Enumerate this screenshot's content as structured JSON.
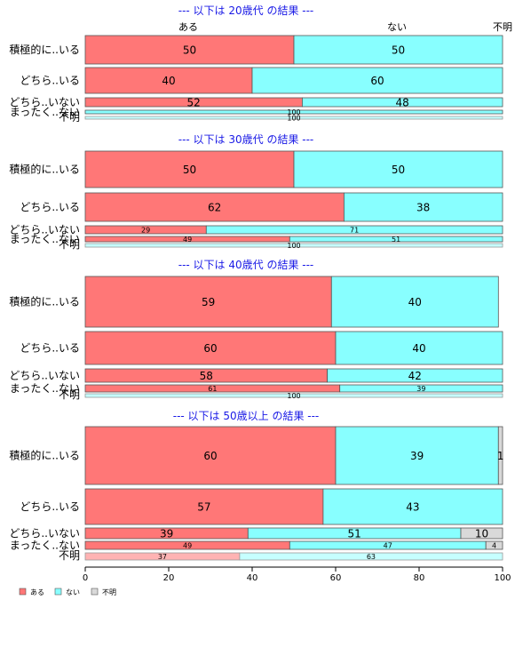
{
  "colors": {
    "aru": "#ff7777",
    "nai": "#88ffff",
    "fumei": "#d9d9d9",
    "title": "#1a1ae6",
    "border": "#555555"
  },
  "header": {
    "col_aru": "ある",
    "col_nai": "ない",
    "col_fumei": "不明"
  },
  "legend": {
    "items": [
      "ある",
      "ない",
      "不明"
    ]
  },
  "chart_data": {
    "type": "bar",
    "orientation": "horizontal",
    "stacked": true,
    "xlim": [
      0,
      100
    ],
    "xticks": [
      0,
      20,
      40,
      60,
      80,
      100
    ],
    "series_names": [
      "ある",
      "ない",
      "不明"
    ],
    "panels": [
      {
        "title": "--- 以下は 20歳代 の結果 ---",
        "rows": [
          {
            "label": "積極的に..いる",
            "values": [
              50,
              50,
              0
            ]
          },
          {
            "label": "どちら..いる",
            "values": [
              40,
              60,
              0
            ]
          },
          {
            "label": "どちら..いない",
            "values": [
              52,
              48,
              0
            ]
          },
          {
            "label": "まったく..ない",
            "values": [
              0,
              100,
              0
            ]
          },
          {
            "label": "不明",
            "values": [
              0,
              100,
              0
            ]
          }
        ]
      },
      {
        "title": "--- 以下は 30歳代 の結果 ---",
        "rows": [
          {
            "label": "積極的に..いる",
            "values": [
              50,
              50,
              0
            ]
          },
          {
            "label": "どちら..いる",
            "values": [
              62,
              38,
              0
            ]
          },
          {
            "label": "どちら..いない",
            "values": [
              29,
              71,
              0
            ]
          },
          {
            "label": "まったく..ない",
            "values": [
              49,
              51,
              0
            ]
          },
          {
            "label": "不明",
            "values": [
              0,
              100,
              0
            ]
          }
        ]
      },
      {
        "title": "--- 以下は 40歳代 の結果 ---",
        "rows": [
          {
            "label": "積極的に..いる",
            "values": [
              59,
              40,
              0
            ]
          },
          {
            "label": "どちら..いる",
            "values": [
              60,
              40,
              0
            ]
          },
          {
            "label": "どちら..いない",
            "values": [
              58,
              42,
              0
            ]
          },
          {
            "label": "まったく..ない",
            "values": [
              61,
              39,
              0
            ]
          },
          {
            "label": "不明",
            "values": [
              0,
              100,
              0
            ]
          }
        ]
      },
      {
        "title": "--- 以下は 50歳以上 の結果 ---",
        "rows": [
          {
            "label": "積極的に..いる",
            "values": [
              60,
              39,
              1
            ]
          },
          {
            "label": "どちら..いる",
            "values": [
              57,
              43,
              0
            ]
          },
          {
            "label": "どちら..いない",
            "values": [
              39,
              51,
              10
            ]
          },
          {
            "label": "まったく..ない",
            "values": [
              49,
              47,
              4
            ]
          },
          {
            "label": "不明",
            "values": [
              37,
              63,
              0
            ]
          }
        ]
      }
    ]
  }
}
